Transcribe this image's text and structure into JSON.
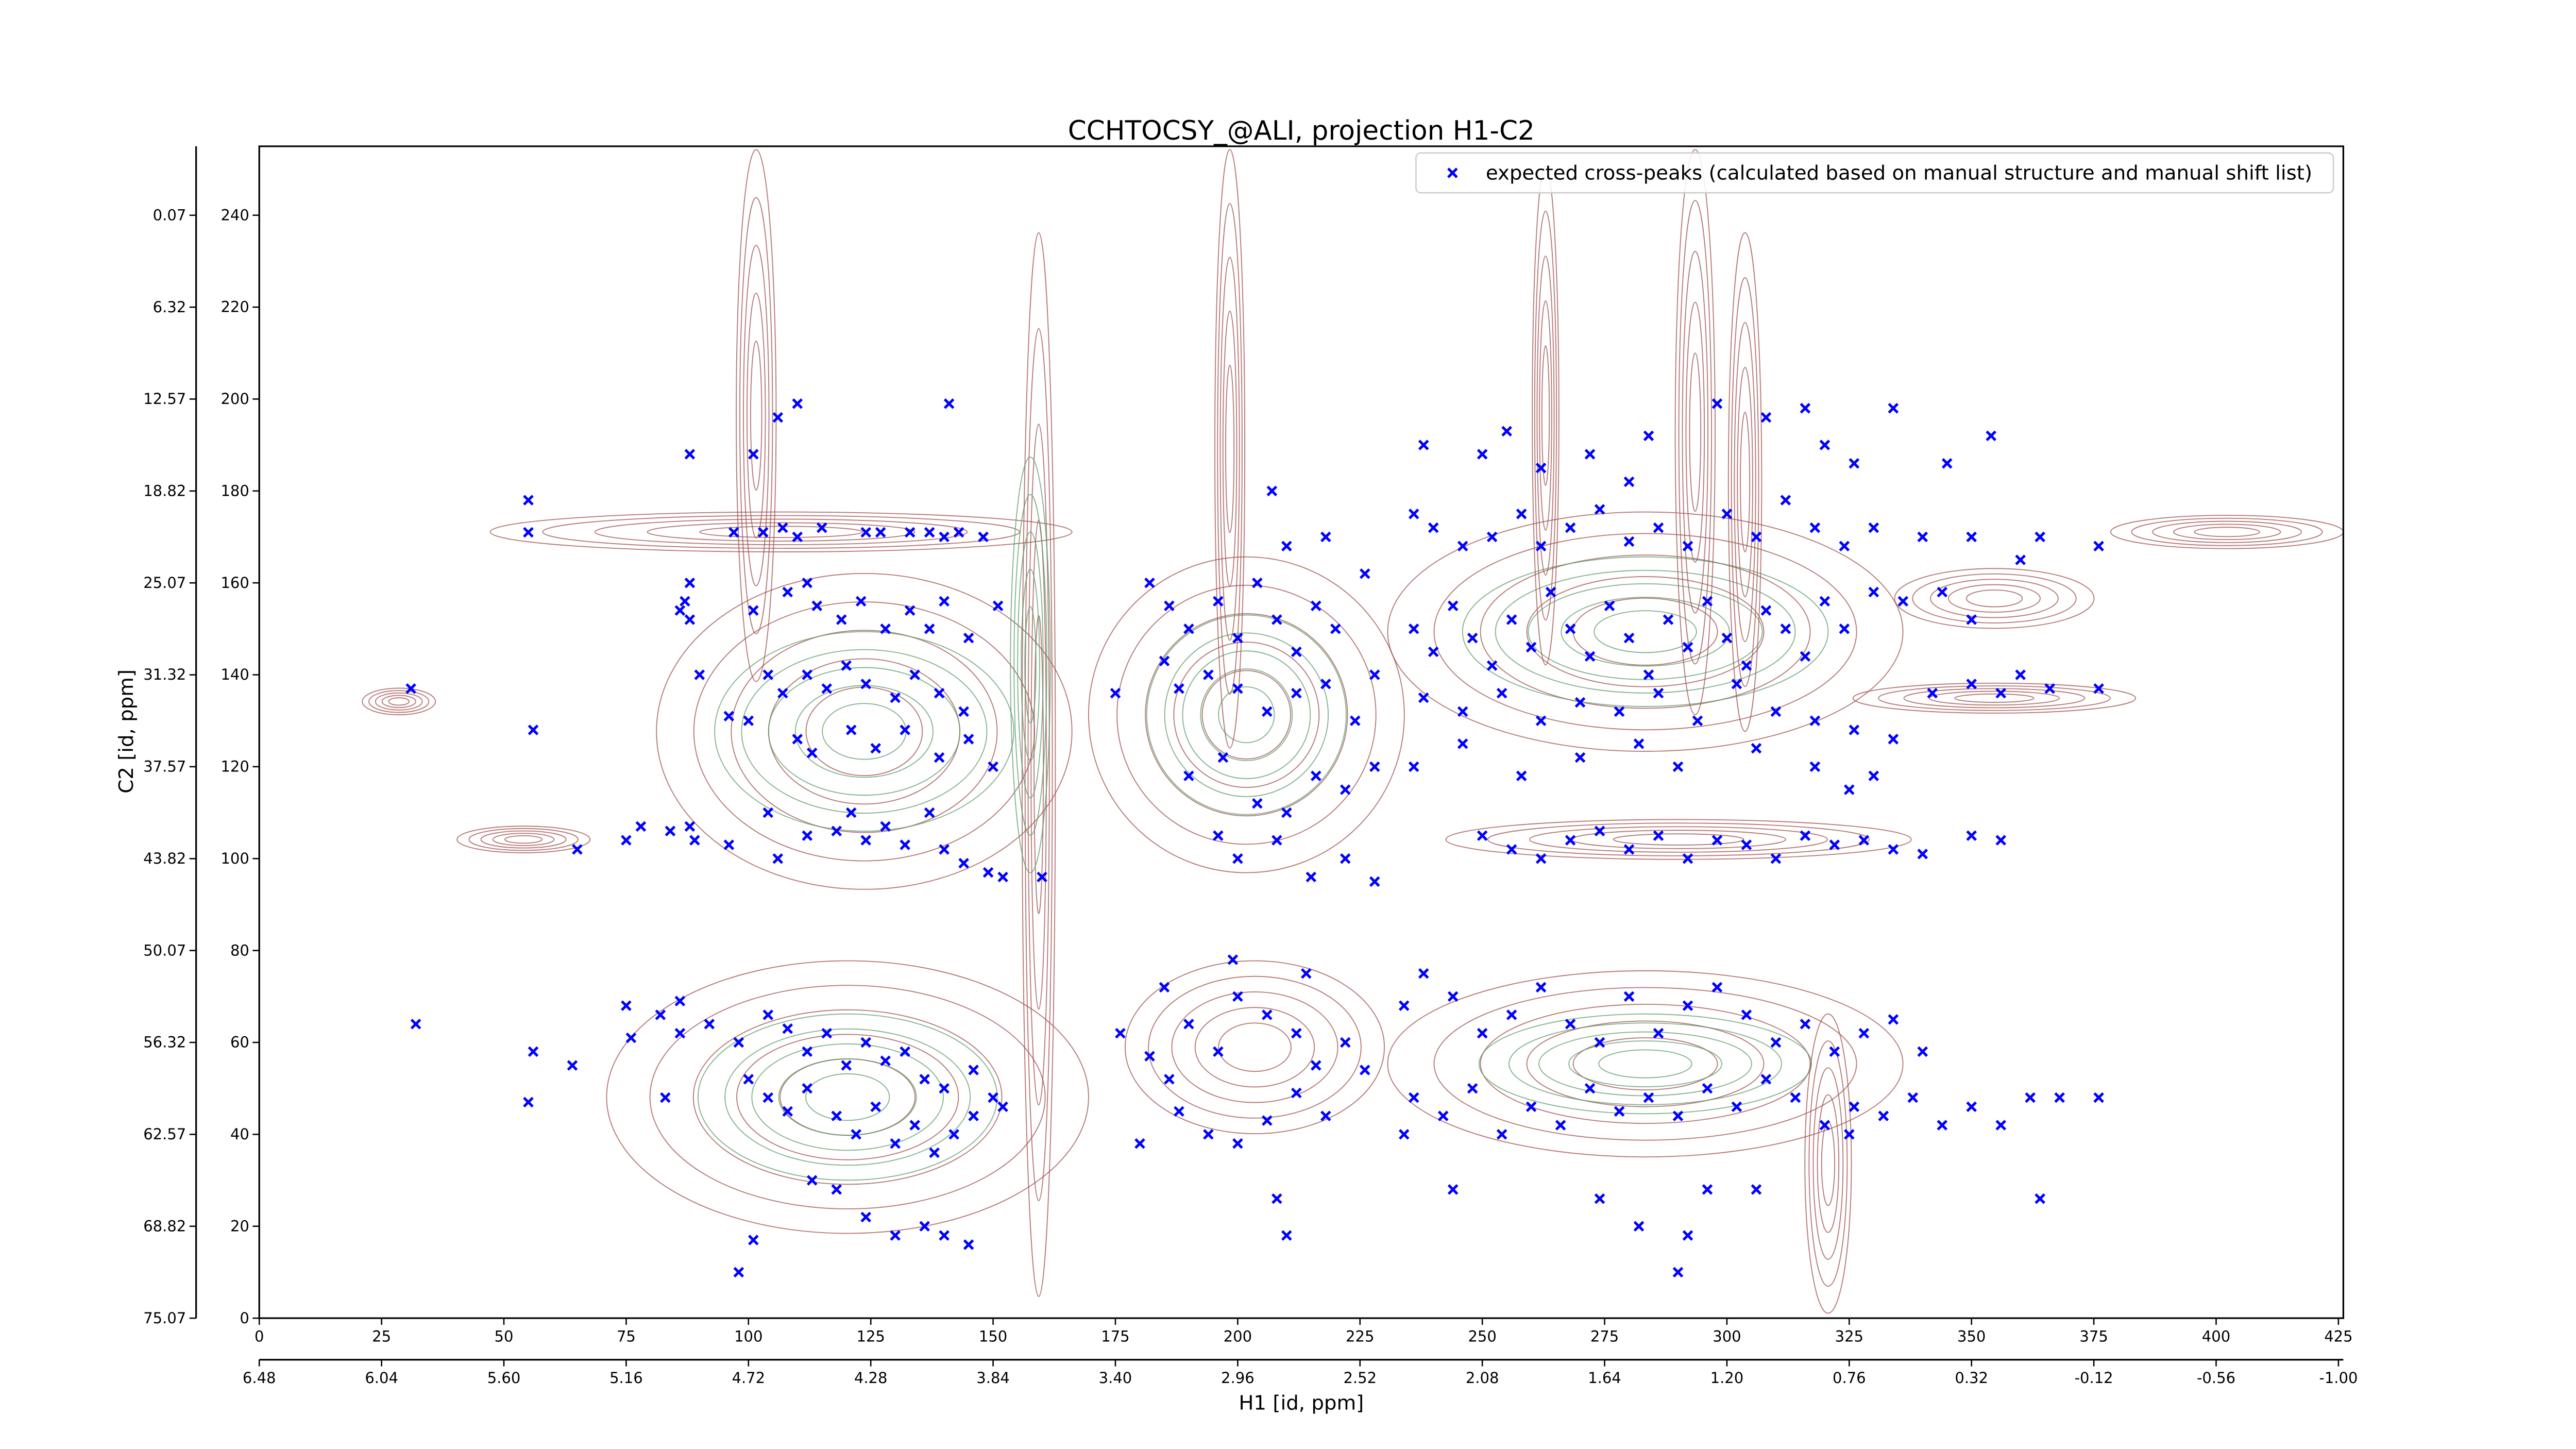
{
  "chart_data": {
    "type": "scatter",
    "title": "CCHTOCSY_@ALI, projection H1-C2",
    "xlabel": "H1 [id, ppm]",
    "ylabel": "C2 [id, ppm]",
    "xlim": [
      0,
      426
    ],
    "xticks": [
      0,
      25,
      50,
      75,
      100,
      125,
      150,
      175,
      200,
      225,
      250,
      275,
      300,
      325,
      350,
      375,
      400,
      425
    ],
    "ylim": [
      0,
      255
    ],
    "yticks": [
      0,
      20,
      40,
      60,
      80,
      100,
      120,
      140,
      160,
      180,
      200,
      220,
      240
    ],
    "x2lim": [
      6.48,
      -1.0176
    ],
    "x2ticks": [
      6.48,
      6.04,
      {
        "value": 5.6,
        "label": "5.60"
      },
      5.16,
      4.72,
      4.28,
      3.84,
      {
        "value": 3.4,
        "label": "3.40"
      },
      2.96,
      2.52,
      2.08,
      1.64,
      {
        "value": 1.2,
        "label": "1.20"
      },
      0.76,
      0.32,
      -0.12,
      -0.56,
      {
        "value": -1,
        "label": "-1.00"
      }
    ],
    "y2lim": [
      75.07,
      -4.62
    ],
    "y2ticks": [
      75.07,
      68.82,
      62.57,
      56.32,
      50.07,
      43.82,
      37.57,
      31.32,
      25.07,
      18.82,
      12.57,
      6.32,
      0.07
    ],
    "legend": "upper right",
    "series": [
      {
        "name": "expected cross-peaks (calculated based on manual structure and manual shift list)",
        "color": "#0000ff",
        "x": [
          55,
          55,
          31,
          56,
          65,
          75,
          78,
          84,
          88,
          89,
          96,
          104,
          106,
          112,
          118,
          124,
          128,
          132,
          121,
          137,
          140,
          144,
          149,
          152,
          160,
          88,
          86,
          87,
          88,
          90,
          101,
          88,
          106,
          110,
          141,
          97,
          103,
          107,
          110,
          115,
          124,
          127,
          133,
          137,
          140,
          143,
          148,
          101,
          108,
          112,
          114,
          119,
          123,
          128,
          133,
          137,
          140,
          145,
          151,
          104,
          107,
          112,
          116,
          120,
          124,
          130,
          134,
          139,
          144,
          96,
          100,
          110,
          113,
          121,
          126,
          132,
          139,
          145,
          150,
          75,
          76,
          82,
          86,
          92,
          98,
          104,
          108,
          112,
          116,
          120,
          124,
          128,
          132,
          136,
          140,
          146,
          150,
          100,
          104,
          108,
          112,
          118,
          122,
          126,
          130,
          134,
          138,
          142,
          146,
          152,
          113,
          118,
          124,
          130,
          136,
          140,
          145,
          101,
          98,
          32,
          56,
          55,
          64,
          83,
          86,
          182,
          186,
          190,
          196,
          200,
          204,
          208,
          212,
          216,
          220,
          188,
          194,
          200,
          206,
          212,
          218,
          224,
          228,
          185,
          175,
          190,
          197,
          204,
          210,
          216,
          222,
          228,
          196,
          200,
          208,
          215,
          222,
          228,
          207,
          210,
          226,
          218,
          176,
          182,
          190,
          196,
          200,
          206,
          212,
          216,
          222,
          226,
          188,
          194,
          200,
          206,
          212,
          218,
          180,
          186,
          199,
          185,
          214,
          208,
          210,
          236,
          240,
          246,
          252,
          258,
          262,
          268,
          274,
          280,
          286,
          292,
          300,
          306,
          312,
          318,
          324,
          330,
          340,
          350,
          360,
          364,
          376,
          238,
          250,
          262,
          272,
          284,
          298,
          308,
          316,
          320,
          326,
          334,
          345,
          354,
          255,
          280,
          236,
          240,
          244,
          248,
          252,
          256,
          260,
          264,
          268,
          272,
          276,
          280,
          284,
          288,
          292,
          296,
          300,
          304,
          308,
          312,
          316,
          320,
          324,
          330,
          336,
          344,
          350,
          238,
          246,
          254,
          262,
          270,
          278,
          286,
          294,
          302,
          310,
          318,
          326,
          334,
          342,
          350,
          356,
          360,
          376,
          366,
          236,
          246,
          258,
          270,
          282,
          290,
          306,
          318,
          330,
          325,
          250,
          256,
          262,
          268,
          274,
          280,
          286,
          292,
          298,
          304,
          310,
          316,
          322,
          328,
          334,
          340,
          350,
          356,
          234,
          238,
          244,
          250,
          256,
          262,
          268,
          274,
          280,
          286,
          292,
          298,
          304,
          310,
          316,
          322,
          328,
          334,
          340,
          236,
          242,
          248,
          254,
          260,
          266,
          272,
          278,
          284,
          290,
          296,
          302,
          308,
          314,
          320,
          326,
          332,
          338,
          344,
          350,
          356,
          362,
          368,
          376,
          234,
          244,
          274,
          282,
          292,
          296,
          306,
          290,
          325,
          364
        ],
        "values": [
          178,
          171,
          137,
          128,
          102,
          104,
          107,
          106,
          107,
          104,
          103,
          110,
          100,
          105,
          106,
          104,
          107,
          103,
          110,
          110,
          102,
          99,
          97,
          96,
          96,
          160,
          154,
          156,
          152,
          140,
          188,
          188,
          196,
          199,
          199,
          171,
          171,
          172,
          170,
          172,
          171,
          171,
          171,
          171,
          170,
          171,
          170,
          154,
          158,
          160,
          155,
          152,
          156,
          150,
          154,
          150,
          156,
          148,
          155,
          140,
          136,
          140,
          137,
          142,
          138,
          135,
          140,
          136,
          132,
          131,
          130,
          126,
          123,
          128,
          124,
          128,
          122,
          126,
          120,
          68,
          61,
          66,
          62,
          64,
          60,
          66,
          63,
          58,
          62,
          55,
          60,
          56,
          58,
          52,
          50,
          54,
          48,
          52,
          48,
          45,
          50,
          44,
          40,
          46,
          38,
          42,
          36,
          40,
          44,
          46,
          30,
          28,
          22,
          18,
          20,
          18,
          16,
          17,
          10,
          64,
          58,
          47,
          55,
          48,
          69,
          160,
          155,
          150,
          156,
          148,
          160,
          152,
          145,
          155,
          150,
          137,
          140,
          137,
          132,
          136,
          138,
          130,
          140,
          143,
          136,
          118,
          122,
          112,
          110,
          118,
          115,
          120,
          105,
          100,
          104,
          96,
          100,
          95,
          180,
          168,
          162,
          170,
          62,
          57,
          64,
          58,
          70,
          66,
          62,
          55,
          60,
          54,
          45,
          40,
          38,
          43,
          49,
          44,
          38,
          52,
          78,
          72,
          75,
          26,
          18,
          175,
          172,
          168,
          170,
          175,
          168,
          172,
          176,
          169,
          172,
          168,
          175,
          170,
          178,
          172,
          168,
          172,
          170,
          170,
          165,
          170,
          168,
          190,
          188,
          185,
          188,
          192,
          199,
          196,
          198,
          190,
          186,
          198,
          186,
          192,
          193,
          182,
          150,
          145,
          155,
          148,
          142,
          152,
          146,
          158,
          150,
          144,
          155,
          148,
          140,
          152,
          146,
          156,
          148,
          142,
          154,
          150,
          144,
          156,
          150,
          158,
          156,
          158,
          152,
          135,
          132,
          136,
          130,
          134,
          132,
          136,
          130,
          138,
          132,
          130,
          128,
          126,
          136,
          138,
          136,
          140,
          137,
          137,
          120,
          125,
          118,
          122,
          125,
          120,
          124,
          120,
          118,
          115,
          105,
          102,
          100,
          104,
          106,
          102,
          105,
          100,
          104,
          103,
          100,
          105,
          103,
          104,
          102,
          101,
          105,
          104,
          68,
          75,
          70,
          62,
          66,
          72,
          64,
          60,
          70,
          62,
          68,
          72,
          66,
          60,
          64,
          58,
          62,
          65,
          58,
          48,
          44,
          50,
          40,
          46,
          42,
          50,
          45,
          48,
          44,
          50,
          46,
          52,
          48,
          42,
          46,
          44,
          48,
          42,
          46,
          42,
          48,
          48,
          48,
          40,
          28,
          26,
          20,
          18,
          28,
          28,
          10,
          40,
          26
        ]
      }
    ]
  }
}
